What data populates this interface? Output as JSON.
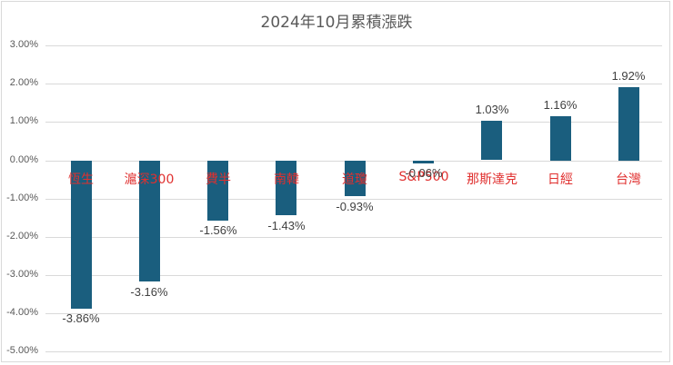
{
  "chart_data": {
    "type": "bar",
    "title": "2024年10月累積漲跌",
    "xlabel": "",
    "ylabel": "",
    "ylim": [
      -0.05,
      0.03
    ],
    "yticks": [
      "3.00%",
      "2.00%",
      "1.00%",
      "0.00%",
      "-1.00%",
      "-2.00%",
      "-3.00%",
      "-4.00%",
      "-5.00%"
    ],
    "grid": true,
    "legend": "none",
    "categories": [
      "恆生",
      "滬深300",
      "費半",
      "南韓",
      "道瓊",
      "S&P500",
      "那斯達克",
      "日經",
      "台灣"
    ],
    "values": [
      -3.86,
      -3.16,
      -1.56,
      -1.43,
      -0.93,
      -0.06,
      1.03,
      1.16,
      1.92
    ],
    "value_labels": [
      "-3.86%",
      "-3.16%",
      "-1.56%",
      "-1.43%",
      "-0.93%",
      "-0.06%",
      "1.03%",
      "1.16%",
      "1.92%"
    ],
    "colors": {
      "bar": "#1a5e7e",
      "category_label": "#e0302f",
      "value_label": "#404040",
      "grid": "#d9d9d9"
    }
  }
}
